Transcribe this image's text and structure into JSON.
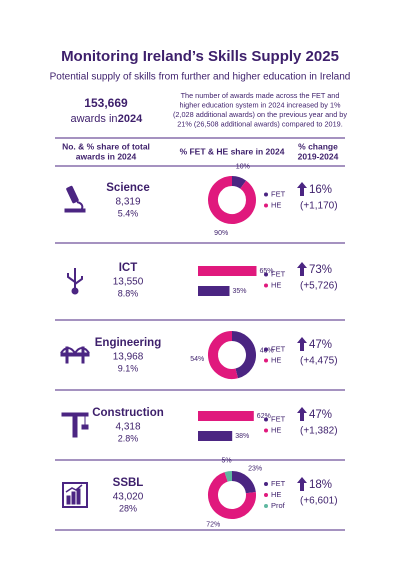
{
  "title": "Monitoring Ireland’s Skills Supply 2025",
  "subtitle": "Potential supply of skills from further and higher education in Ireland",
  "summary": {
    "total": "153,669",
    "text": "awards in",
    "year": "2024"
  },
  "note": [
    "The number of awards made across the FET and",
    "higher education system in 2024 increased by 1%",
    "(2,028 additional awards) on the previous year and by",
    "21% (26,508 additional awards) compared to 2019."
  ],
  "columns": [
    [
      "No. & % share of total",
      "awards in 2024"
    ],
    [
      "% FET & HE share in 2024"
    ],
    [
      "% change",
      "2019-2024"
    ]
  ],
  "rows": [
    {
      "name": "Science",
      "awards": "8,319",
      "share": "5.4%",
      "change": "16%",
      "change_abs": "(+1,170)",
      "chart": {
        "type": "donut",
        "labels": [
          "FET",
          "HE"
        ],
        "colors": [
          "#4b2582",
          "#e0197d"
        ],
        "values": [
          10,
          90
        ],
        "value_labels": [
          "10%",
          "90%"
        ]
      }
    },
    {
      "name": "ICT",
      "awards": "13,550",
      "share": "8.8%",
      "change": "73%",
      "change_abs": "(+5,726)",
      "chart": {
        "type": "bar",
        "labels": [
          "FET",
          "HE"
        ],
        "colors": [
          "#4b2582",
          "#e0197d"
        ],
        "values": [
          35,
          65
        ],
        "value_labels": [
          "35%",
          "65%"
        ]
      }
    },
    {
      "name": "Engineering",
      "awards": "13,968",
      "share": "9.1%",
      "change": "47%",
      "change_abs": "(+4,475)",
      "chart": {
        "type": "donut",
        "labels": [
          "FET",
          "HE"
        ],
        "colors": [
          "#4b2582",
          "#e0197d"
        ],
        "values": [
          46,
          54
        ],
        "value_labels": [
          "46%",
          "54%"
        ]
      }
    },
    {
      "name": "Construction",
      "awards": "4,318",
      "share": "2.8%",
      "change": "47%",
      "change_abs": "(+1,382)",
      "chart": {
        "type": "bar",
        "labels": [
          "FET",
          "HE"
        ],
        "colors": [
          "#4b2582",
          "#e0197d"
        ],
        "values": [
          38,
          62
        ],
        "value_labels": [
          "38%",
          "62%"
        ]
      }
    },
    {
      "name": "SSBL",
      "awards": "43,020",
      "share": "28%",
      "change": "18%",
      "change_abs": "(+6,601)",
      "chart": {
        "type": "donut",
        "labels": [
          "FET",
          "HE",
          "Prof"
        ],
        "colors": [
          "#4b2582",
          "#e0197d",
          "#5fb8a0"
        ],
        "values": [
          23,
          72,
          5
        ],
        "value_labels": [
          "23%",
          "72%",
          "5%"
        ]
      }
    }
  ]
}
